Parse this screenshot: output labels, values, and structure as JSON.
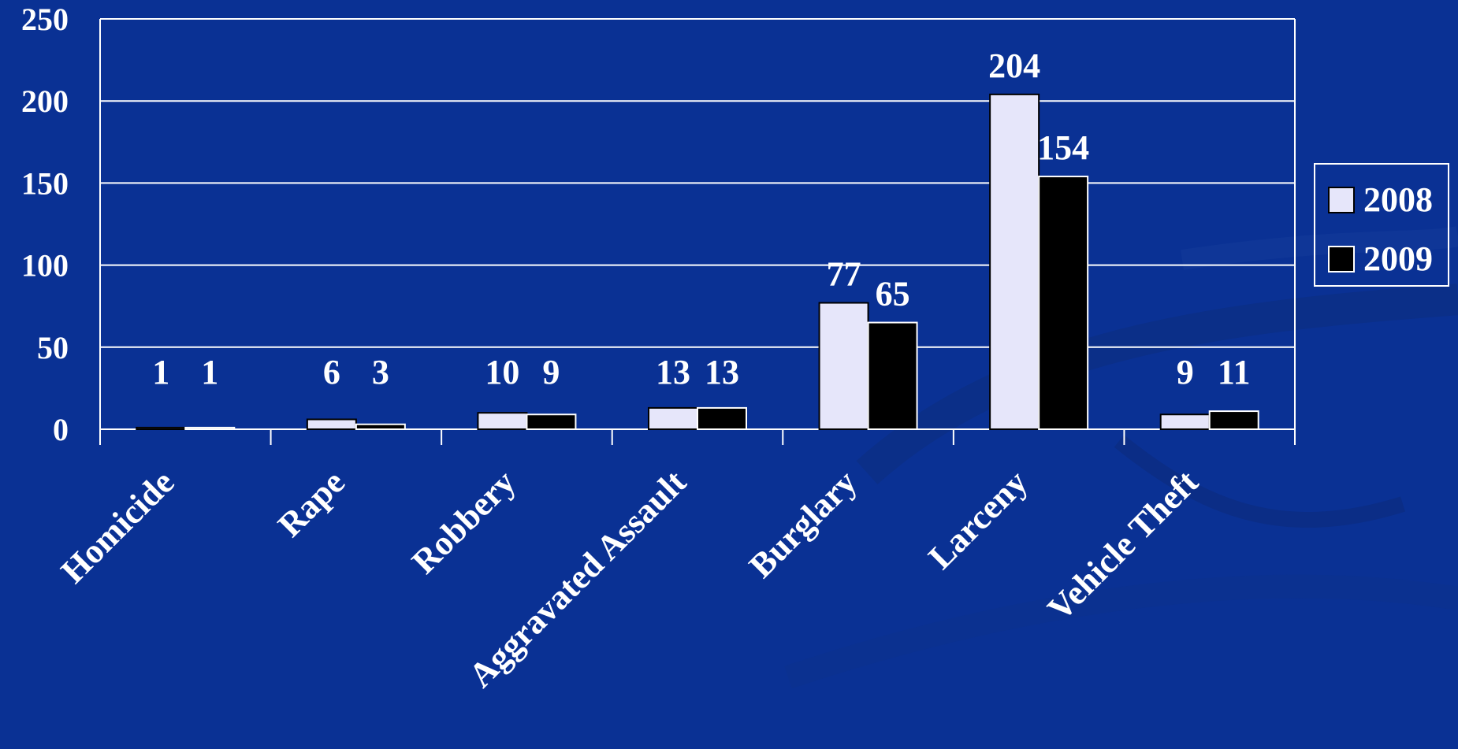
{
  "colors": {
    "background": "#0a3194",
    "gridline": "#ffffff",
    "series_2008": "#e6e6fa",
    "series_2009": "#000000",
    "text": "#ffffff"
  },
  "chart_data": {
    "type": "bar",
    "title": "",
    "xlabel": "",
    "ylabel": "",
    "categories": [
      "Homicide",
      "Rape",
      "Robbery",
      "Aggravated Assault",
      "Burglary",
      "Larceny",
      "Vehicle Theft"
    ],
    "series": [
      {
        "name": "2008",
        "values": [
          1,
          6,
          10,
          13,
          77,
          204,
          9
        ]
      },
      {
        "name": "2009",
        "values": [
          1,
          3,
          9,
          13,
          65,
          154,
          11
        ]
      }
    ],
    "ylim": [
      0,
      250
    ],
    "yticks": [
      0,
      50,
      100,
      150,
      200,
      250
    ],
    "grid": true,
    "legend_position": "right",
    "data_labels": true
  }
}
